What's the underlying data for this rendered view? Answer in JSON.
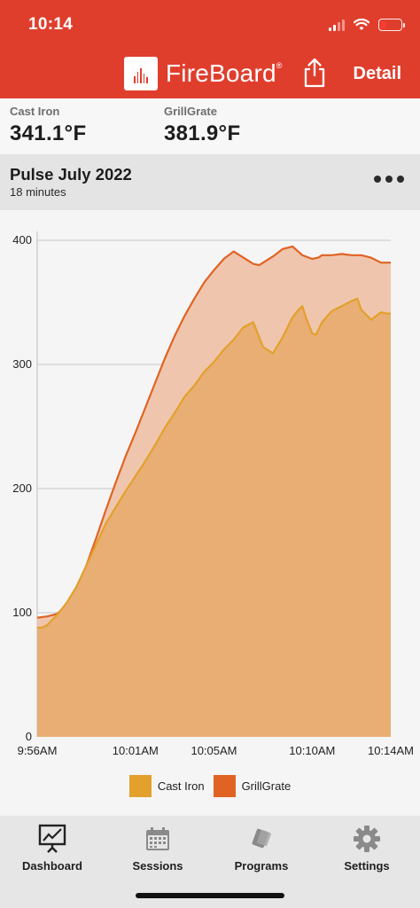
{
  "status_bar": {
    "time": "10:14"
  },
  "header": {
    "brand": "FireBoard",
    "brand_mark": "®",
    "detail_label": "Detail",
    "share_icon": "share-icon"
  },
  "probes": [
    {
      "name": "Cast Iron",
      "temp": "341.1°F"
    },
    {
      "name": "GrillGrate",
      "temp": "381.9°F"
    }
  ],
  "session": {
    "title": "Pulse July 2022",
    "duration": "18 minutes"
  },
  "colors": {
    "cast_iron": "#e3a02c",
    "grillgrate": "#e06324",
    "header": "#e03e2d"
  },
  "chart_data": {
    "type": "area",
    "x_tick_labels": [
      "9:56AM",
      "10:01AM",
      "10:05AM",
      "10:10AM",
      "10:14AM"
    ],
    "x_ticks_minutes": [
      0,
      5,
      9,
      14,
      18
    ],
    "ylim": [
      0,
      400
    ],
    "y_ticks": [
      0,
      100,
      200,
      300,
      400
    ],
    "grid": true,
    "legend_position": "bottom",
    "series": [
      {
        "name": "Cast Iron",
        "color": "#e3a02c",
        "x": [
          0,
          0.25,
          0.5,
          0.75,
          1,
          1.5,
          2,
          2.5,
          3,
          3.5,
          4,
          4.5,
          5,
          5.5,
          6,
          6.5,
          7,
          7.5,
          8,
          8.5,
          9,
          9.5,
          10,
          10.5,
          11,
          11.5,
          12,
          12.5,
          13,
          13.3,
          13.5,
          13.7,
          14,
          14.2,
          14.5,
          15,
          15.5,
          16,
          16.3,
          16.5,
          17,
          17.5,
          17.8,
          18
        ],
        "y": [
          88,
          88,
          90,
          94,
          98,
          108,
          121,
          138,
          155,
          172,
          185,
          198,
          210,
          222,
          235,
          249,
          261,
          274,
          283,
          294,
          302,
          312,
          320,
          330,
          334,
          314,
          309,
          322,
          338,
          344,
          347,
          337,
          325,
          324,
          334,
          343,
          347,
          351,
          353,
          344,
          336,
          342,
          341,
          341
        ]
      },
      {
        "name": "GrillGrate",
        "color": "#e06324",
        "x": [
          0,
          0.5,
          1,
          1.5,
          2,
          2.5,
          3,
          3.5,
          4,
          4.5,
          5,
          5.5,
          6,
          6.5,
          7,
          7.5,
          8,
          8.5,
          9,
          9.5,
          10,
          10.5,
          11,
          11.3,
          11.5,
          12,
          12.5,
          13,
          13.5,
          14,
          14.3,
          14.5,
          15,
          15.5,
          16,
          16.5,
          17,
          17.5,
          18
        ],
        "y": [
          96,
          97,
          99,
          106,
          118,
          138,
          160,
          183,
          205,
          226,
          245,
          265,
          285,
          305,
          323,
          339,
          353,
          366,
          376,
          385,
          391,
          386,
          381,
          380,
          382,
          387,
          393,
          395,
          388,
          385,
          386,
          388,
          388,
          389,
          388,
          388,
          386,
          382,
          382
        ]
      }
    ]
  },
  "tabs": [
    {
      "label": "Dashboard",
      "icon": "dashboard-icon",
      "active": true
    },
    {
      "label": "Sessions",
      "icon": "calendar-icon",
      "active": false
    },
    {
      "label": "Programs",
      "icon": "programs-icon",
      "active": false
    },
    {
      "label": "Settings",
      "icon": "gear-icon",
      "active": false
    }
  ]
}
